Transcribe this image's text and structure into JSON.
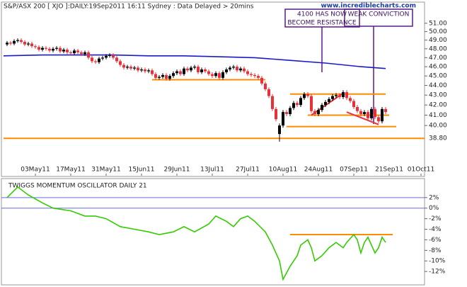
{
  "chart_data": [
    {
      "type": "candlestick",
      "title": "S&P/ASX 200 [ XJO ]:DAILY:19Sep2011 16:11 Sydney : Data Delayed > 20mins",
      "source": "www.incrediblecharts.com",
      "log_scale": true,
      "grid": false,
      "up_color": "#000000",
      "down_color": "#e8303a",
      "xlim": [
        -1,
        118
      ],
      "ylim": [
        35.5,
        53
      ],
      "xticks": [
        {
          "value": 8,
          "label": "03May11"
        },
        {
          "value": 18,
          "label": "17May11"
        },
        {
          "value": 28,
          "label": "31May11"
        },
        {
          "value": 38,
          "label": "15Jun11"
        },
        {
          "value": 48,
          "label": "29Jun11"
        },
        {
          "value": 58,
          "label": "13Jul11"
        },
        {
          "value": 68,
          "label": "27Jul11"
        },
        {
          "value": 78,
          "label": "10Aug11"
        },
        {
          "value": 88,
          "label": "24Aug11"
        },
        {
          "value": 98,
          "label": "07Sep11"
        },
        {
          "value": 108,
          "label": "21Sep11"
        },
        {
          "value": 117,
          "label": "01Oct11"
        }
      ],
      "yticks": [
        {
          "value": 51,
          "label": "51.00"
        },
        {
          "value": 50,
          "label": "50.00"
        },
        {
          "value": 49,
          "label": "49.00"
        },
        {
          "value": 48,
          "label": "48.00"
        },
        {
          "value": 47,
          "label": "47.00"
        },
        {
          "value": 46,
          "label": "46.00"
        },
        {
          "value": 45,
          "label": "45.00"
        },
        {
          "value": 44,
          "label": "44.00"
        },
        {
          "value": 43,
          "label": "43.00"
        },
        {
          "value": 42,
          "label": "42.00"
        },
        {
          "value": 41,
          "label": "41.00"
        },
        {
          "value": 40,
          "label": "40.00"
        }
      ],
      "x": [
        0,
        1,
        2,
        3,
        4,
        5,
        6,
        7,
        8,
        9,
        10,
        11,
        12,
        13,
        14,
        15,
        16,
        17,
        18,
        19,
        20,
        21,
        22,
        23,
        24,
        25,
        26,
        27,
        28,
        29,
        30,
        31,
        32,
        33,
        34,
        35,
        36,
        37,
        38,
        39,
        40,
        41,
        42,
        43,
        44,
        45,
        46,
        47,
        48,
        49,
        50,
        51,
        52,
        53,
        54,
        55,
        56,
        57,
        58,
        59,
        60,
        61,
        62,
        63,
        64,
        65,
        66,
        67,
        68,
        69,
        70,
        71,
        72,
        73,
        74,
        75,
        76,
        77,
        78,
        79,
        80,
        81,
        82,
        83,
        84,
        85,
        86,
        87,
        88,
        89,
        90,
        91,
        92,
        93,
        94,
        95,
        96,
        97,
        98,
        99,
        100,
        101,
        102,
        103,
        104,
        105,
        106,
        107
      ],
      "open": [
        48.5,
        48.7,
        48.6,
        48.9,
        49.0,
        48.8,
        48.5,
        48.6,
        48.3,
        48.2,
        47.9,
        48.1,
        48.0,
        47.8,
        48.0,
        48.1,
        47.7,
        47.9,
        47.6,
        47.5,
        47.8,
        47.6,
        47.4,
        47.6,
        47.0,
        46.6,
        46.5,
        46.9,
        47.0,
        47.2,
        47.3,
        47.0,
        46.6,
        46.2,
        45.9,
        46.0,
        45.8,
        45.9,
        45.6,
        45.7,
        45.5,
        45.6,
        45.2,
        44.8,
        44.9,
        45.1,
        44.7,
        45.0,
        45.3,
        45.5,
        45.2,
        45.8,
        45.6,
        45.9,
        46.0,
        45.4,
        45.7,
        45.5,
        45.2,
        45.0,
        45.3,
        44.8,
        45.4,
        45.7,
        45.9,
        46.0,
        45.6,
        45.8,
        45.5,
        45.2,
        45.1,
        45.0,
        44.8,
        44.2,
        43.6,
        42.9,
        41.6,
        39.2,
        40.0,
        41.3,
        41.1,
        41.7,
        42.2,
        42.0,
        42.7,
        43.1,
        42.9,
        41.4,
        41.1,
        41.5,
        42.0,
        42.3,
        42.6,
        42.9,
        43.0,
        42.8,
        43.3,
        42.7,
        42.4,
        41.8,
        41.4,
        41.1,
        41.3,
        40.7,
        41.6,
        40.8,
        40.4,
        41.6
      ],
      "high": [
        48.9,
        48.9,
        49.1,
        49.2,
        49.2,
        49.0,
        48.8,
        48.8,
        48.5,
        48.4,
        48.3,
        48.3,
        48.2,
        48.2,
        48.3,
        48.3,
        48.1,
        48.1,
        47.8,
        48.0,
        48.0,
        47.8,
        47.8,
        47.8,
        47.2,
        46.8,
        47.1,
        47.2,
        47.4,
        47.5,
        47.5,
        47.2,
        46.8,
        46.4,
        46.2,
        46.2,
        46.1,
        46.1,
        45.9,
        45.9,
        45.8,
        45.8,
        45.4,
        45.1,
        45.3,
        45.3,
        45.2,
        45.5,
        45.7,
        45.7,
        46.0,
        46.0,
        46.1,
        46.2,
        46.2,
        45.9,
        45.9,
        45.7,
        45.4,
        45.5,
        45.5,
        45.6,
        45.9,
        46.1,
        46.2,
        46.2,
        46.0,
        46.0,
        45.7,
        45.4,
        45.3,
        45.2,
        45.0,
        44.4,
        43.8,
        43.1,
        41.8,
        40.2,
        41.5,
        41.5,
        41.9,
        42.4,
        42.4,
        42.9,
        43.3,
        43.3,
        43.1,
        41.6,
        41.7,
        42.2,
        42.5,
        42.8,
        43.1,
        43.2,
        43.2,
        43.5,
        43.5,
        42.9,
        42.6,
        42.0,
        41.6,
        41.5,
        41.5,
        41.8,
        41.8,
        41.0,
        41.8,
        41.8
      ],
      "low": [
        48.3,
        48.4,
        48.4,
        48.7,
        48.6,
        48.3,
        48.3,
        48.1,
        48.0,
        47.7,
        47.7,
        47.8,
        47.6,
        47.6,
        47.8,
        47.5,
        47.5,
        47.4,
        47.3,
        47.3,
        47.4,
        47.2,
        47.2,
        46.8,
        46.4,
        46.3,
        46.3,
        46.7,
        46.8,
        47.0,
        46.8,
        46.4,
        46.0,
        45.7,
        45.7,
        45.6,
        45.6,
        45.4,
        45.4,
        45.3,
        45.3,
        45.0,
        44.6,
        44.6,
        44.7,
        44.5,
        44.5,
        44.8,
        45.1,
        45.0,
        45.0,
        45.4,
        45.4,
        45.7,
        45.2,
        45.2,
        45.3,
        45.0,
        44.8,
        44.8,
        44.6,
        44.6,
        45.2,
        45.5,
        45.7,
        45.4,
        45.4,
        45.3,
        45.0,
        44.9,
        44.8,
        44.6,
        44.0,
        43.4,
        42.7,
        41.4,
        40.4,
        38.5,
        39.8,
        40.9,
        40.9,
        41.5,
        41.8,
        41.8,
        42.5,
        42.7,
        41.2,
        40.9,
        40.9,
        41.3,
        41.8,
        42.1,
        42.4,
        42.7,
        42.6,
        42.6,
        42.5,
        42.2,
        41.6,
        41.2,
        40.9,
        40.9,
        40.5,
        40.5,
        40.6,
        40.2,
        40.2,
        41.1
      ],
      "close": [
        48.7,
        48.6,
        48.9,
        49.0,
        48.8,
        48.5,
        48.6,
        48.3,
        48.2,
        47.9,
        48.1,
        48.0,
        47.8,
        48.0,
        48.1,
        47.7,
        47.9,
        47.6,
        47.5,
        47.8,
        47.6,
        47.4,
        47.6,
        47.0,
        46.6,
        46.5,
        46.9,
        47.0,
        47.2,
        47.3,
        47.0,
        46.6,
        46.2,
        45.9,
        46.0,
        45.8,
        45.9,
        45.6,
        45.7,
        45.5,
        45.6,
        45.2,
        44.8,
        44.9,
        45.1,
        44.7,
        45.0,
        45.3,
        45.5,
        45.2,
        45.8,
        45.6,
        45.9,
        46.0,
        45.4,
        45.7,
        45.5,
        45.2,
        45.0,
        45.3,
        44.8,
        45.4,
        45.7,
        45.9,
        46.0,
        45.6,
        45.8,
        45.5,
        45.2,
        45.1,
        45.0,
        44.8,
        44.2,
        43.6,
        42.9,
        41.6,
        40.6,
        40.0,
        41.3,
        41.1,
        41.7,
        42.2,
        42.0,
        42.7,
        43.1,
        42.9,
        41.4,
        41.1,
        41.5,
        42.0,
        42.3,
        42.6,
        42.9,
        43.0,
        42.8,
        43.3,
        42.7,
        42.4,
        41.8,
        41.4,
        41.1,
        41.3,
        40.7,
        41.6,
        40.8,
        40.4,
        41.6,
        41.3
      ],
      "moving_average": {
        "color": "#1a1ac8",
        "x": [
          -1,
          10,
          20,
          30,
          40,
          50,
          60,
          70,
          80,
          90,
          100,
          107
        ],
        "values": [
          47.2,
          47.3,
          47.3,
          47.3,
          47.2,
          47.2,
          47.1,
          47.0,
          46.7,
          46.4,
          46.0,
          45.8
        ]
      },
      "trend_lines": [
        {
          "color": "#ff8c00",
          "x": [
            -1,
            118
          ],
          "values": [
            38.8,
            38.8
          ],
          "label": "38.80"
        },
        {
          "color": "#ff8c00",
          "x": [
            41,
            73
          ],
          "values": [
            44.6,
            44.6
          ]
        },
        {
          "color": "#ff8c00",
          "x": [
            80,
            107
          ],
          "values": [
            43.1,
            43.1
          ]
        },
        {
          "color": "#ff8c00",
          "x": [
            85,
            108
          ],
          "values": [
            41.0,
            41.0
          ]
        },
        {
          "color": "#ff8c00",
          "x": [
            79,
            110
          ],
          "values": [
            39.9,
            39.9
          ]
        },
        {
          "color": "#e8303a",
          "x": [
            86,
            95
          ],
          "values": [
            41.0,
            43.2
          ]
        },
        {
          "color": "#e8303a",
          "x": [
            96,
            105
          ],
          "values": [
            41.3,
            40.1
          ]
        }
      ],
      "annotations": [
        {
          "lines": [
            "4100 HAS NOW",
            "BECOME RESISTANCE"
          ]
        },
        {
          "lines": [
            "WEAK CONVICTION"
          ]
        }
      ]
    },
    {
      "type": "line",
      "title": "TWIGGS MOMENTUM OSCILLATOR DAILY 21",
      "color": "#33cc00",
      "xlim": [
        -1,
        118
      ],
      "ylim": [
        -14,
        5.2
      ],
      "yticks": [
        {
          "value": 2,
          "label": "2%"
        },
        {
          "value": 0,
          "label": "0%"
        },
        {
          "value": -2,
          "label": "-2%"
        },
        {
          "value": -4,
          "label": "-4%"
        },
        {
          "value": -6,
          "label": "-6%"
        },
        {
          "value": -8,
          "label": "-8%"
        },
        {
          "value": -10,
          "label": "-10%"
        },
        {
          "value": -12,
          "label": "-12%"
        }
      ],
      "reference_lines": [
        {
          "value": 2,
          "color": "#6a6adf"
        },
        {
          "value": 0,
          "color": "#6a6adf"
        }
      ],
      "trend_lines": [
        {
          "color": "#ff8c00",
          "x": [
            80,
            109
          ],
          "values": [
            -5,
            -5
          ]
        }
      ],
      "x": [
        0,
        3,
        6,
        10,
        13,
        18,
        22,
        25,
        28,
        32,
        36,
        40,
        43,
        47,
        50,
        53,
        57,
        59,
        62,
        64,
        66,
        68,
        70,
        73,
        75,
        77,
        78,
        80,
        82,
        83,
        85,
        86,
        87,
        89,
        91,
        93,
        95,
        96,
        98,
        99,
        100,
        101,
        102,
        103,
        104,
        105,
        106,
        107
      ],
      "values": [
        2.0,
        4.0,
        2.5,
        1.0,
        0.0,
        -0.5,
        -1.5,
        -1.5,
        -2.0,
        -3.5,
        -4.0,
        -4.5,
        -5.0,
        -4.5,
        -3.5,
        -4.5,
        -3.0,
        -1.5,
        -2.5,
        -3.5,
        -2.0,
        -1.5,
        -2.5,
        -4.5,
        -7.0,
        -10.0,
        -13.5,
        -11.0,
        -9.0,
        -7.0,
        -6.0,
        -7.5,
        -10.0,
        -9.0,
        -7.5,
        -6.5,
        -7.5,
        -6.5,
        -5.0,
        -6.0,
        -8.5,
        -6.5,
        -5.5,
        -7.0,
        -8.5,
        -7.5,
        -5.5,
        -6.5
      ]
    }
  ]
}
